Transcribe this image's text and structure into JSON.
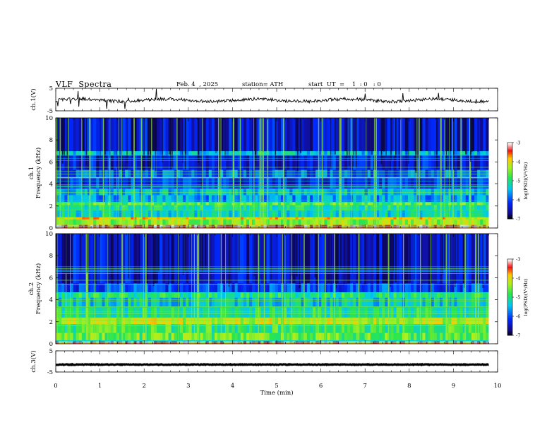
{
  "header": {
    "title": "VLF  Spectra",
    "date": "Feb. 4  , 2025",
    "station": "station= ATH",
    "start_ut": "start  UT  =    1  : 0   : 0"
  },
  "chart_data": [
    {
      "type": "line",
      "panel": "ch1",
      "ylabel": "ch.1(V)",
      "ylim": [
        -5,
        5
      ],
      "yticks": [
        "5",
        "-5"
      ],
      "xlim": [
        0,
        10
      ],
      "x_range": [
        0,
        9.8
      ],
      "baseline": -0.3,
      "color": "#000000"
    },
    {
      "type": "heatmap",
      "panel": "ch1-spectrogram",
      "ylabel_top": "ch.1",
      "ylabel": "Frequency  (kHz)",
      "ylim": [
        0,
        10
      ],
      "yticks": [
        "0",
        "2",
        "4",
        "6",
        "8",
        "10"
      ],
      "xlim": [
        0,
        10
      ],
      "x_range": [
        0,
        9.8
      ],
      "colorbar": {
        "label": "log(PSD)(V²/Hz)",
        "range": [
          -7,
          -3
        ],
        "ticks": [
          "-3",
          "-4",
          "-5",
          "-6",
          "-7"
        ]
      },
      "bands": [
        {
          "f0": 0.0,
          "f1": 0.3,
          "level": -3.5
        },
        {
          "f0": 0.3,
          "f1": 0.8,
          "level": -4.4
        },
        {
          "f0": 0.8,
          "f1": 1.0,
          "level": -4.0
        },
        {
          "f0": 1.0,
          "f1": 1.6,
          "level": -5.2
        },
        {
          "f0": 1.6,
          "f1": 2.1,
          "level": -5.0
        },
        {
          "f0": 2.1,
          "f1": 2.4,
          "level": -4.6
        },
        {
          "f0": 2.4,
          "f1": 3.0,
          "level": -5.6
        },
        {
          "f0": 3.0,
          "f1": 3.6,
          "level": -5.4
        },
        {
          "f0": 3.6,
          "f1": 4.6,
          "level": -6.2
        },
        {
          "f0": 4.6,
          "f1": 5.3,
          "level": -5.9
        },
        {
          "f0": 5.3,
          "f1": 6.6,
          "level": -6.3
        },
        {
          "f0": 6.6,
          "f1": 7.0,
          "level": -5.4
        },
        {
          "f0": 7.0,
          "f1": 10.0,
          "level": -6.4
        }
      ]
    },
    {
      "type": "heatmap",
      "panel": "ch2-spectrogram",
      "ylabel_top": "ch.2",
      "ylabel": "Frequency  (kHz)",
      "ylim": [
        0,
        10
      ],
      "yticks": [
        "0",
        "2",
        "4",
        "6",
        "8",
        "10"
      ],
      "xlim": [
        0,
        10
      ],
      "x_range": [
        0,
        9.8
      ],
      "colorbar": {
        "label": "log(PSD)(V²/Hz)",
        "range": [
          -7,
          -3
        ],
        "ticks": [
          "-3",
          "-4",
          "-5",
          "-6",
          "-7"
        ]
      },
      "bands": [
        {
          "f0": 0.0,
          "f1": 0.3,
          "level": -3.6
        },
        {
          "f0": 0.3,
          "f1": 1.0,
          "level": -4.6
        },
        {
          "f0": 1.0,
          "f1": 1.8,
          "level": -4.8
        },
        {
          "f0": 1.8,
          "f1": 2.4,
          "level": -4.2
        },
        {
          "f0": 2.4,
          "f1": 3.4,
          "level": -5.0
        },
        {
          "f0": 3.4,
          "f1": 4.2,
          "level": -5.3
        },
        {
          "f0": 4.2,
          "f1": 4.7,
          "level": -5.0
        },
        {
          "f0": 4.7,
          "f1": 5.5,
          "level": -6.0
        },
        {
          "f0": 5.5,
          "f1": 10.0,
          "level": -6.4
        }
      ]
    },
    {
      "type": "line",
      "panel": "ch3",
      "ylabel": "ch.3(V)",
      "ylim": [
        -5,
        5
      ],
      "yticks": [
        "5",
        "-5"
      ],
      "xlim": [
        0,
        10
      ],
      "x_range": [
        0,
        9.8
      ],
      "baseline": -1.5,
      "color": "#000000",
      "xlabel": "Time  (min)",
      "xticks": [
        "0",
        "1",
        "2",
        "3",
        "4",
        "5",
        "6",
        "7",
        "8",
        "9",
        "10"
      ]
    }
  ]
}
